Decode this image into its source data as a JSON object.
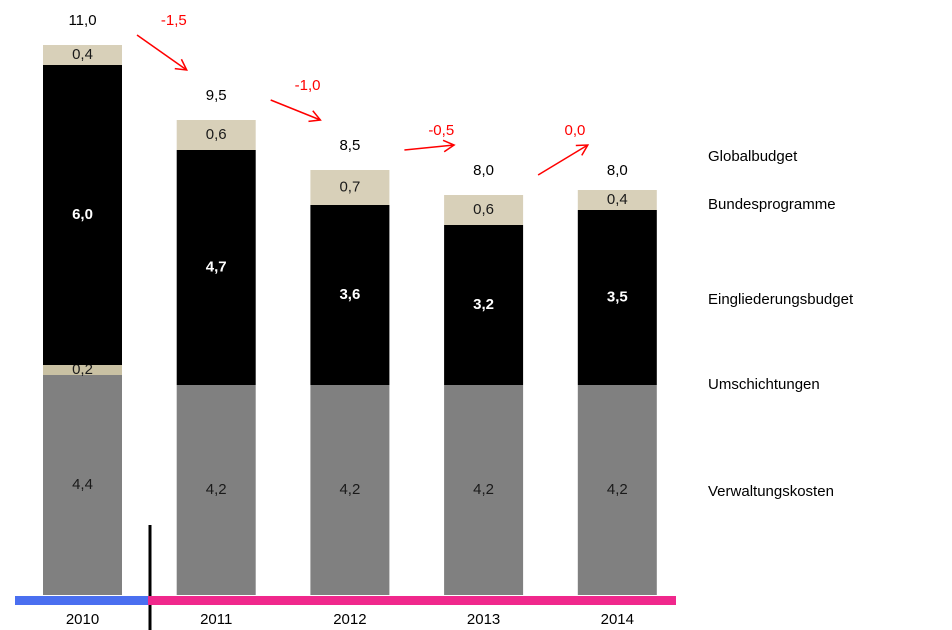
{
  "chart_data": {
    "type": "stacked-bar",
    "categories": [
      "2010",
      "2011",
      "2012",
      "2013",
      "2014"
    ],
    "series": [
      {
        "name": "Verwaltungskosten",
        "color": "#808080",
        "label_color": "#1a1a1a",
        "values": [
          4.4,
          4.2,
          4.2,
          4.2,
          4.2
        ],
        "value_labels": [
          "4,4",
          "4,2",
          "4,2",
          "4,2",
          "4,2"
        ]
      },
      {
        "name": "Umschichtungen",
        "color": "#c9c1a3",
        "label_color": "#1a1a1a",
        "values": [
          0.2,
          null,
          null,
          null,
          null
        ],
        "value_labels": [
          "0,2",
          null,
          null,
          null,
          null
        ]
      },
      {
        "name": "Eingliederungsbudget",
        "color": "#000000",
        "label_color": "#ffffff",
        "values": [
          6.0,
          4.7,
          3.6,
          3.2,
          3.5
        ],
        "value_labels": [
          "6,0",
          "4,7",
          "3,6",
          "3,2",
          "3,5"
        ]
      },
      {
        "name": "Bundesprogramme",
        "color": "#d8d0b9",
        "label_color": "#1a1a1a",
        "values": [
          0.4,
          0.6,
          0.7,
          0.6,
          0.4
        ],
        "value_labels": [
          "0,4",
          "0,6",
          "0,7",
          "0,6",
          "0,4"
        ]
      }
    ],
    "totals": {
      "name": "Globalbudget",
      "values": [
        11.0,
        9.5,
        8.5,
        8.0,
        8.0
      ],
      "value_labels": [
        "11,0",
        "9,5",
        "8,5",
        "8,0",
        "8,0"
      ]
    },
    "changes": {
      "color": "#ff0000",
      "values": [
        -1.5,
        -1.0,
        -0.5,
        0.0
      ],
      "value_labels": [
        "-1,5",
        "-1,0",
        "-0,5",
        "0,0"
      ]
    }
  }
}
